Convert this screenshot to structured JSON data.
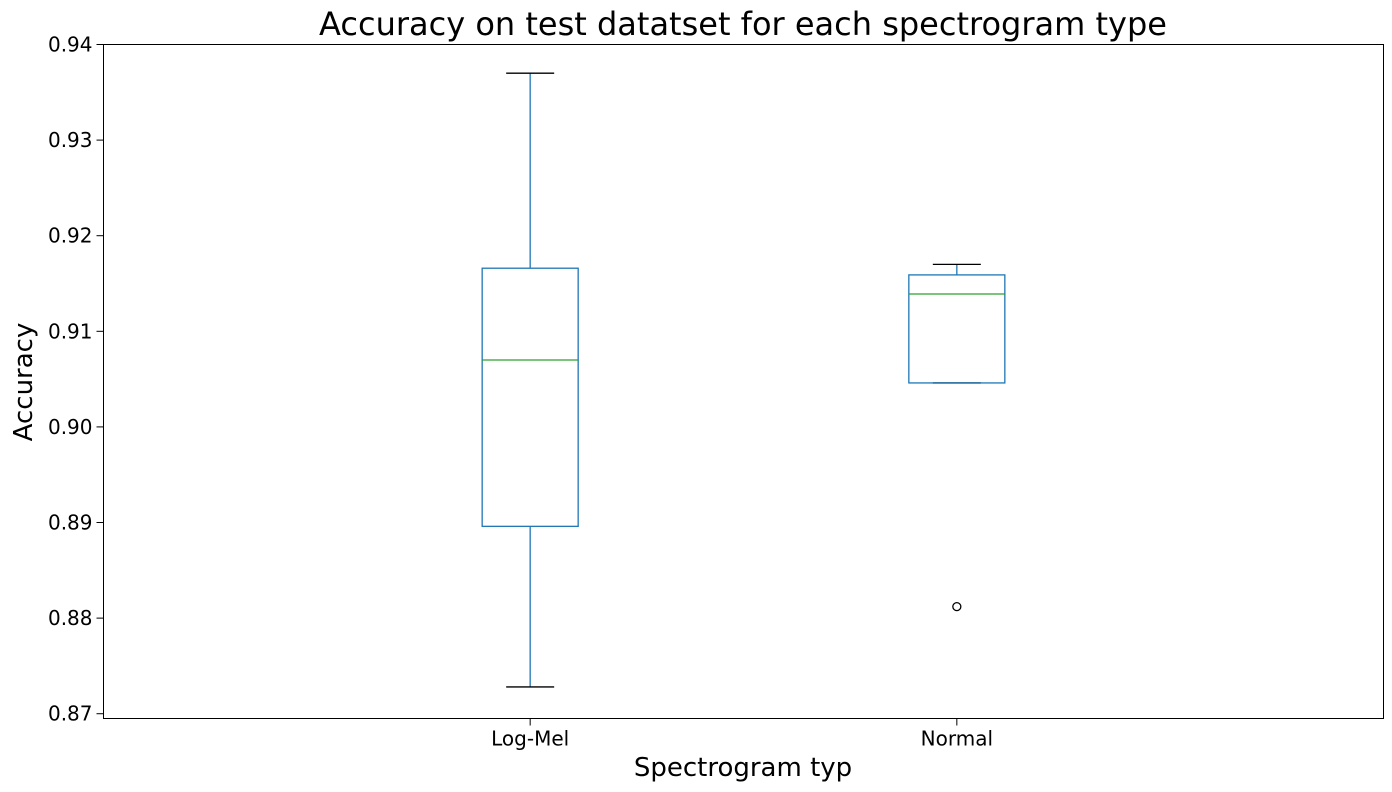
{
  "chart_data": {
    "type": "box",
    "title": "Accuracy on test datatset for each spectrogram type",
    "xlabel": "Spectrogram typ",
    "ylabel": "Accuracy",
    "ylim": [
      0.8695,
      0.94
    ],
    "yticks": [
      0.87,
      0.88,
      0.89,
      0.9,
      0.91,
      0.92,
      0.93,
      0.94
    ],
    "ytick_labels": [
      "0.87",
      "0.88",
      "0.89",
      "0.90",
      "0.91",
      "0.92",
      "0.93",
      "0.94"
    ],
    "categories": [
      "Log-Mel",
      "Normal"
    ],
    "boxes": [
      {
        "category": "Log-Mel",
        "whisker_low": 0.8728,
        "q1": 0.8896,
        "median": 0.907,
        "q3": 0.9166,
        "whisker_high": 0.937,
        "outliers": []
      },
      {
        "category": "Normal",
        "whisker_low": 0.9046,
        "q1": 0.9046,
        "median": 0.9139,
        "q3": 0.9159,
        "whisker_high": 0.917,
        "outliers": [
          0.8812
        ]
      }
    ],
    "grid": false,
    "colors": {
      "box": "#1f77b4",
      "median": "#2ca02c",
      "cap": "#000000",
      "outlier": "#000000"
    }
  }
}
